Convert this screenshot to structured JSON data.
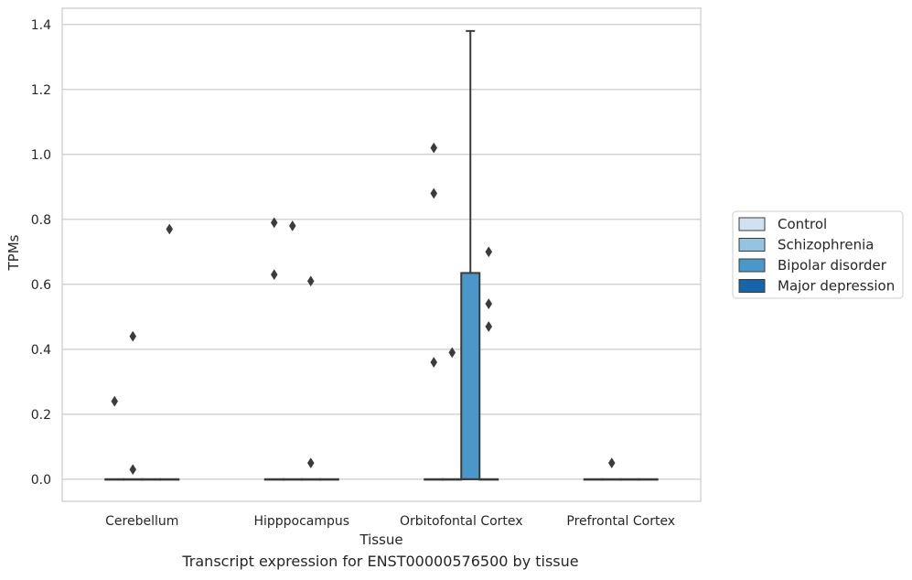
{
  "caption": "Transcript expression for ENST00000576500 by tissue",
  "chart_data": {
    "type": "box",
    "title": "",
    "xlabel": "Tissue",
    "ylabel": "TPMs",
    "ylim": [
      -0.068,
      1.45
    ],
    "yticks": [
      0.0,
      0.2,
      0.4,
      0.6,
      0.8,
      1.0,
      1.2,
      1.4
    ],
    "ytick_labels": [
      "0.0",
      "0.2",
      "0.4",
      "0.6",
      "0.8",
      "1.0",
      "1.2",
      "1.4"
    ],
    "grid": "horizontal",
    "legend_position": "right",
    "categories": [
      "Cerebellum",
      "Hipppocampus",
      "Orbitofontal Cortex",
      "Prefrontal Cortex"
    ],
    "groups": [
      {
        "name": "Control",
        "color": "#d0e1f2"
      },
      {
        "name": "Schizophrenia",
        "color": "#94c4df"
      },
      {
        "name": "Bipolar disorder",
        "color": "#4a98c9"
      },
      {
        "name": "Major depression",
        "color": "#1764ab"
      }
    ],
    "boxes": [
      {
        "category": "Cerebellum",
        "group": "Control",
        "q1": 0.0,
        "median": 0.0,
        "q3": 0.0,
        "whisker_low": 0.0,
        "whisker_high": 0.0,
        "outliers": [
          0.24
        ]
      },
      {
        "category": "Cerebellum",
        "group": "Schizophrenia",
        "q1": 0.0,
        "median": 0.0,
        "q3": 0.0,
        "whisker_low": 0.0,
        "whisker_high": 0.0,
        "outliers": [
          0.44,
          0.03
        ]
      },
      {
        "category": "Cerebellum",
        "group": "Bipolar disorder",
        "q1": 0.0,
        "median": 0.0,
        "q3": 0.0,
        "whisker_low": 0.0,
        "whisker_high": 0.0,
        "outliers": []
      },
      {
        "category": "Cerebellum",
        "group": "Major depression",
        "q1": 0.0,
        "median": 0.0,
        "q3": 0.0,
        "whisker_low": 0.0,
        "whisker_high": 0.0,
        "outliers": [
          0.77
        ]
      },
      {
        "category": "Hipppocampus",
        "group": "Control",
        "q1": 0.0,
        "median": 0.0,
        "q3": 0.0,
        "whisker_low": 0.0,
        "whisker_high": 0.0,
        "outliers": [
          0.79,
          0.63
        ]
      },
      {
        "category": "Hipppocampus",
        "group": "Schizophrenia",
        "q1": 0.0,
        "median": 0.0,
        "q3": 0.0,
        "whisker_low": 0.0,
        "whisker_high": 0.0,
        "outliers": [
          0.78
        ]
      },
      {
        "category": "Hipppocampus",
        "group": "Bipolar disorder",
        "q1": 0.0,
        "median": 0.0,
        "q3": 0.0,
        "whisker_low": 0.0,
        "whisker_high": 0.0,
        "outliers": [
          0.61,
          0.05
        ]
      },
      {
        "category": "Hipppocampus",
        "group": "Major depression",
        "q1": 0.0,
        "median": 0.0,
        "q3": 0.0,
        "whisker_low": 0.0,
        "whisker_high": 0.0,
        "outliers": []
      },
      {
        "category": "Orbitofontal Cortex",
        "group": "Control",
        "q1": 0.0,
        "median": 0.0,
        "q3": 0.0,
        "whisker_low": 0.0,
        "whisker_high": 0.0,
        "outliers": [
          1.02,
          0.88,
          0.36
        ]
      },
      {
        "category": "Orbitofontal Cortex",
        "group": "Schizophrenia",
        "q1": 0.0,
        "median": 0.0,
        "q3": 0.0,
        "whisker_low": 0.0,
        "whisker_high": 0.0,
        "outliers": [
          0.39
        ]
      },
      {
        "category": "Orbitofontal Cortex",
        "group": "Bipolar disorder",
        "q1": 0.0,
        "median": 0.0,
        "q3": 0.635,
        "whisker_low": 0.0,
        "whisker_high": 1.38,
        "outliers": []
      },
      {
        "category": "Orbitofontal Cortex",
        "group": "Major depression",
        "q1": 0.0,
        "median": 0.0,
        "q3": 0.0,
        "whisker_low": 0.0,
        "whisker_high": 0.0,
        "outliers": [
          0.7,
          0.54,
          0.47
        ]
      },
      {
        "category": "Prefrontal Cortex",
        "group": "Control",
        "q1": 0.0,
        "median": 0.0,
        "q3": 0.0,
        "whisker_low": 0.0,
        "whisker_high": 0.0,
        "outliers": []
      },
      {
        "category": "Prefrontal Cortex",
        "group": "Schizophrenia",
        "q1": 0.0,
        "median": 0.0,
        "q3": 0.0,
        "whisker_low": 0.0,
        "whisker_high": 0.0,
        "outliers": [
          0.05
        ]
      },
      {
        "category": "Prefrontal Cortex",
        "group": "Bipolar disorder",
        "q1": 0.0,
        "median": 0.0,
        "q3": 0.0,
        "whisker_low": 0.0,
        "whisker_high": 0.0,
        "outliers": []
      },
      {
        "category": "Prefrontal Cortex",
        "group": "Major depression",
        "q1": 0.0,
        "median": 0.0,
        "q3": 0.0,
        "whisker_low": 0.0,
        "whisker_high": 0.0,
        "outliers": []
      }
    ]
  }
}
